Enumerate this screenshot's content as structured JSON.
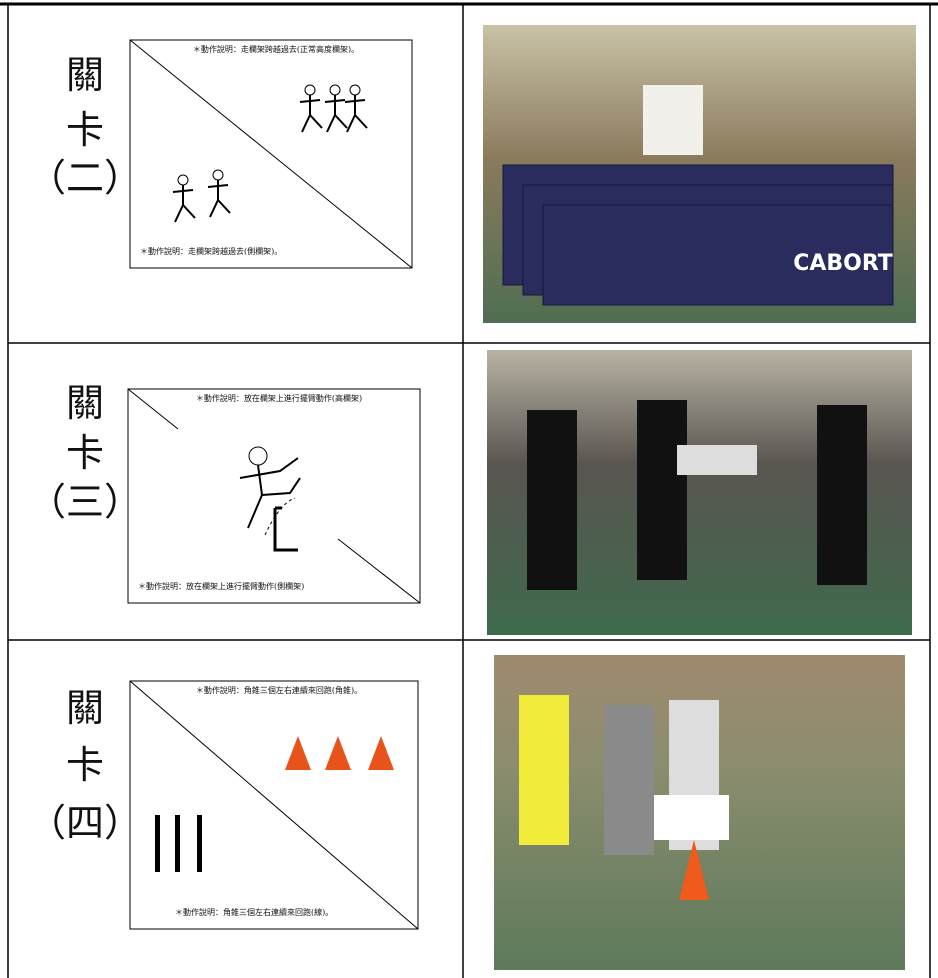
{
  "rows": [
    {
      "stage": [
        "關",
        "卡",
        "（二）"
      ],
      "caption_top": "＊動作說明：走欄架跨越過去(正常高度欄架)。",
      "caption_bottom": "＊動作說明：走欄架跨越過去(側欄架)。",
      "photo_text": "CABORT"
    },
    {
      "stage": [
        "關",
        "卡",
        "（三）"
      ],
      "caption_top": "＊動作說明：放在欄架上進行擺臂動作(高欄架)",
      "caption_bottom": "＊動作說明：放在欄架上進行擺臂動作(側欄架)"
    },
    {
      "stage": [
        "關",
        "卡",
        "（四）"
      ],
      "caption_top": "＊動作說明：角錐三個左右連續來回跑(角錐)。",
      "caption_bottom": "＊動作說明：角錐三個左右連續來回跑(線)。"
    }
  ]
}
